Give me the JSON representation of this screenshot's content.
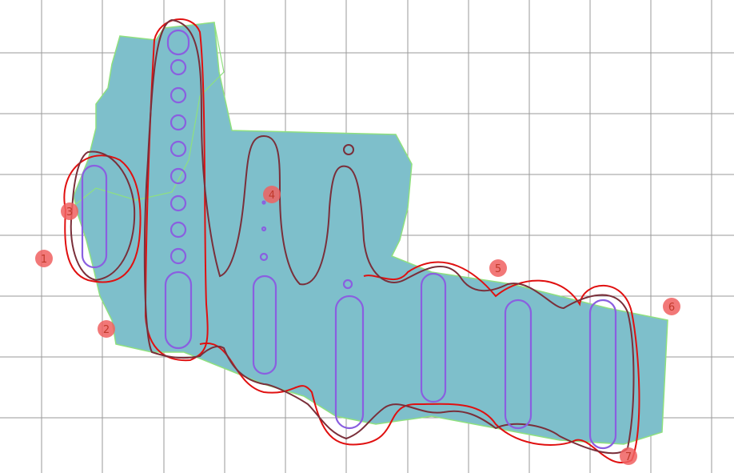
{
  "colors": {
    "background": "#ffffff",
    "grid": "#9a9a9a",
    "field": "#7ebfcb",
    "field_edge": "#8fe07f",
    "boundary_path": "#e01010",
    "inner_path": "#7a2f3a",
    "obstacles": "#8a5fe0",
    "marker_fill": "#f06060",
    "marker_text": "#b02020"
  },
  "markers": [
    {
      "id": "1",
      "label": "1"
    },
    {
      "id": "2",
      "label": "2"
    },
    {
      "id": "3",
      "label": "3"
    },
    {
      "id": "4",
      "label": "4"
    },
    {
      "id": "5",
      "label": "5"
    },
    {
      "id": "6",
      "label": "6"
    },
    {
      "id": "7",
      "label": "7"
    }
  ]
}
